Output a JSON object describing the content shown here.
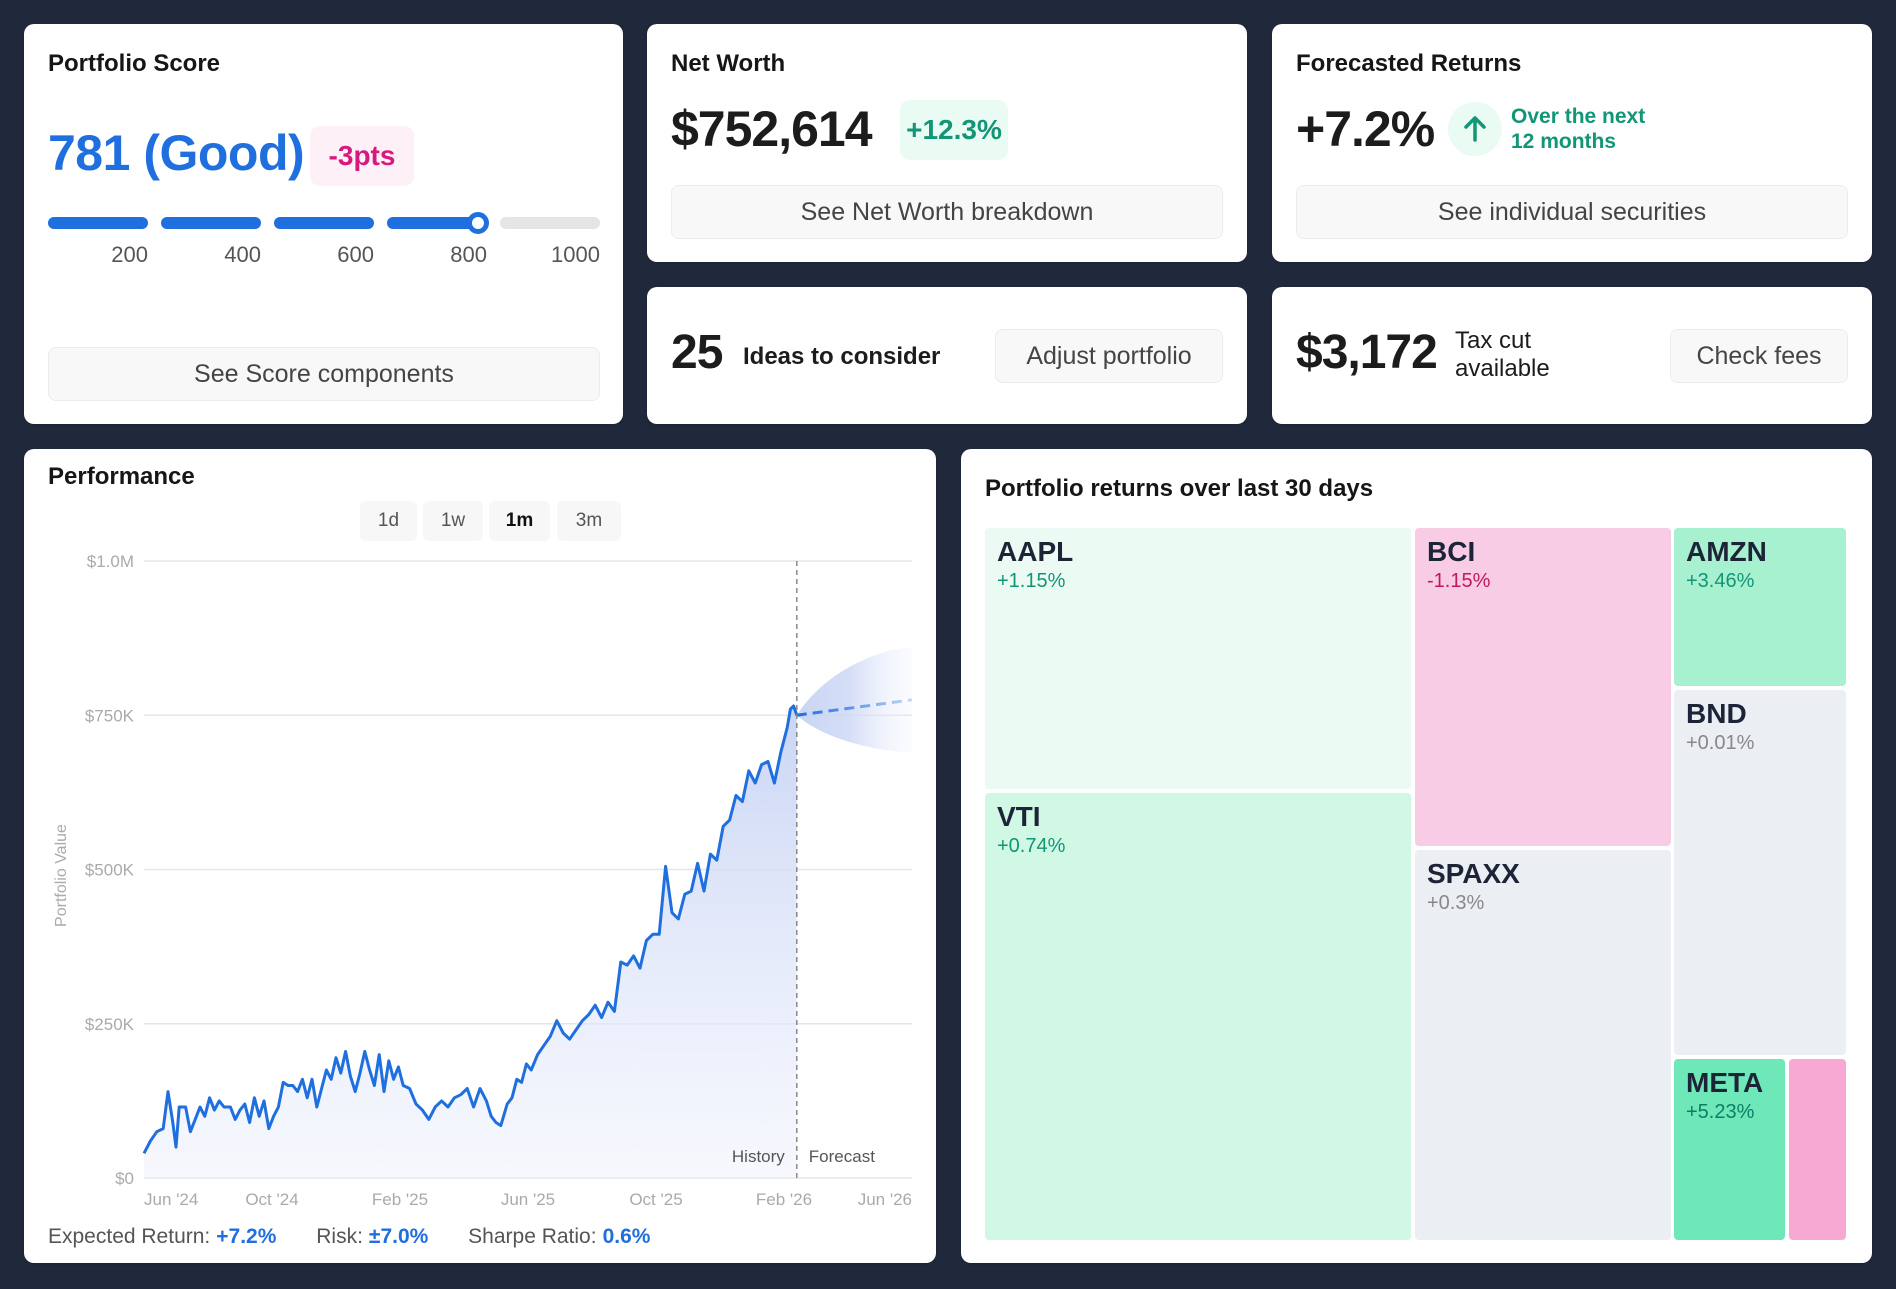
{
  "score": {
    "title": "Portfolio Score",
    "value": "781 (Good)",
    "score": 781,
    "score_max": 1000,
    "delta": "-3pts",
    "scale_labels": [
      "200",
      "400",
      "600",
      "800",
      "1000"
    ],
    "button": "See Score components"
  },
  "networth": {
    "title": "Net Worth",
    "value": "$752,614",
    "change": "+12.3%",
    "button": "See Net Worth breakdown"
  },
  "forecast": {
    "title": "Forecasted Returns",
    "value": "+7.2%",
    "icon": "arrow-up-icon",
    "note_line1": "Over the next",
    "note_line2": "12 months",
    "button": "See individual securities"
  },
  "ideas": {
    "count": "25",
    "label": "Ideas to consider",
    "button": "Adjust portfolio"
  },
  "taxcut": {
    "value": "$3,172",
    "label_line1": "Tax cut",
    "label_line2": "available",
    "button": "Check fees"
  },
  "performance": {
    "title": "Performance",
    "ranges": [
      {
        "label": "1d",
        "active": false
      },
      {
        "label": "1w",
        "active": false
      },
      {
        "label": "1m",
        "active": true
      },
      {
        "label": "3m",
        "active": false
      }
    ],
    "stats": {
      "expected_label": "Expected Return:",
      "expected_value": "+7.2%",
      "risk_label": "Risk:",
      "risk_value": "±7.0%",
      "sharpe_label": "Sharpe Ratio:",
      "sharpe_value": "0.6%"
    }
  },
  "chart_data": {
    "type": "line",
    "title": "Performance",
    "ylabel": "Portfolio Value",
    "xlabel": "",
    "ylim": [
      0,
      1000000
    ],
    "yticks": [
      0,
      250000,
      500000,
      750000,
      1000000
    ],
    "ytick_labels": [
      "$0",
      "$250K",
      "$500K",
      "$750K",
      "$1.0M"
    ],
    "xticks": [
      "Jun '24",
      "Oct '24",
      "Feb '25",
      "Jun '25",
      "Oct '25",
      "Feb '26",
      "Jun '26"
    ],
    "x_range_months": [
      0,
      24
    ],
    "grid": true,
    "divider_month": 20.4,
    "divider_labels": {
      "left": "History",
      "right": "Forecast"
    },
    "series": [
      {
        "name": "History",
        "style": "solid",
        "points_month_value": [
          [
            0.0,
            40000
          ],
          [
            0.2,
            60000
          ],
          [
            0.4,
            75000
          ],
          [
            0.6,
            80000
          ],
          [
            0.75,
            140000
          ],
          [
            0.9,
            90000
          ],
          [
            1.0,
            50000
          ],
          [
            1.1,
            115000
          ],
          [
            1.3,
            115000
          ],
          [
            1.45,
            75000
          ],
          [
            1.6,
            95000
          ],
          [
            1.75,
            115000
          ],
          [
            1.9,
            100000
          ],
          [
            2.05,
            130000
          ],
          [
            2.2,
            110000
          ],
          [
            2.35,
            125000
          ],
          [
            2.5,
            115000
          ],
          [
            2.7,
            115000
          ],
          [
            2.85,
            95000
          ],
          [
            3.0,
            110000
          ],
          [
            3.15,
            120000
          ],
          [
            3.3,
            90000
          ],
          [
            3.45,
            130000
          ],
          [
            3.6,
            100000
          ],
          [
            3.75,
            125000
          ],
          [
            3.9,
            80000
          ],
          [
            4.05,
            100000
          ],
          [
            4.2,
            115000
          ],
          [
            4.35,
            155000
          ],
          [
            4.5,
            150000
          ],
          [
            4.65,
            150000
          ],
          [
            4.8,
            140000
          ],
          [
            4.95,
            160000
          ],
          [
            5.1,
            130000
          ],
          [
            5.25,
            160000
          ],
          [
            5.4,
            115000
          ],
          [
            5.55,
            145000
          ],
          [
            5.7,
            175000
          ],
          [
            5.85,
            160000
          ],
          [
            6.0,
            195000
          ],
          [
            6.15,
            170000
          ],
          [
            6.3,
            205000
          ],
          [
            6.45,
            165000
          ],
          [
            6.6,
            140000
          ],
          [
            6.75,
            170000
          ],
          [
            6.9,
            205000
          ],
          [
            7.05,
            175000
          ],
          [
            7.2,
            150000
          ],
          [
            7.35,
            200000
          ],
          [
            7.5,
            140000
          ],
          [
            7.65,
            190000
          ],
          [
            7.8,
            160000
          ],
          [
            7.95,
            180000
          ],
          [
            8.1,
            150000
          ],
          [
            8.3,
            145000
          ],
          [
            8.5,
            120000
          ],
          [
            8.7,
            110000
          ],
          [
            8.9,
            95000
          ],
          [
            9.1,
            115000
          ],
          [
            9.3,
            125000
          ],
          [
            9.5,
            115000
          ],
          [
            9.7,
            130000
          ],
          [
            9.9,
            135000
          ],
          [
            10.1,
            145000
          ],
          [
            10.3,
            115000
          ],
          [
            10.5,
            145000
          ],
          [
            10.7,
            125000
          ],
          [
            10.85,
            100000
          ],
          [
            11.0,
            90000
          ],
          [
            11.15,
            85000
          ],
          [
            11.35,
            120000
          ],
          [
            11.5,
            130000
          ],
          [
            11.65,
            160000
          ],
          [
            11.8,
            155000
          ],
          [
            11.95,
            185000
          ],
          [
            12.1,
            175000
          ],
          [
            12.3,
            200000
          ],
          [
            12.5,
            215000
          ],
          [
            12.7,
            230000
          ],
          [
            12.9,
            255000
          ],
          [
            13.1,
            235000
          ],
          [
            13.3,
            225000
          ],
          [
            13.5,
            240000
          ],
          [
            13.7,
            255000
          ],
          [
            13.9,
            265000
          ],
          [
            14.1,
            280000
          ],
          [
            14.3,
            260000
          ],
          [
            14.5,
            285000
          ],
          [
            14.7,
            270000
          ],
          [
            14.9,
            350000
          ],
          [
            15.1,
            345000
          ],
          [
            15.3,
            360000
          ],
          [
            15.5,
            340000
          ],
          [
            15.7,
            385000
          ],
          [
            15.9,
            395000
          ],
          [
            16.1,
            395000
          ],
          [
            16.3,
            505000
          ],
          [
            16.5,
            430000
          ],
          [
            16.7,
            420000
          ],
          [
            16.9,
            460000
          ],
          [
            17.1,
            465000
          ],
          [
            17.3,
            510000
          ],
          [
            17.5,
            465000
          ],
          [
            17.7,
            525000
          ],
          [
            17.9,
            515000
          ],
          [
            18.1,
            570000
          ],
          [
            18.3,
            580000
          ],
          [
            18.5,
            620000
          ],
          [
            18.7,
            610000
          ],
          [
            18.9,
            660000
          ],
          [
            19.1,
            640000
          ],
          [
            19.3,
            670000
          ],
          [
            19.5,
            675000
          ],
          [
            19.7,
            640000
          ],
          [
            19.9,
            690000
          ],
          [
            20.1,
            730000
          ],
          [
            20.2,
            760000
          ],
          [
            20.3,
            765000
          ],
          [
            20.4,
            750000
          ]
        ]
      },
      {
        "name": "Forecast",
        "style": "dashed",
        "points_month_value": [
          [
            20.4,
            750000
          ],
          [
            24.0,
            775000
          ]
        ],
        "band_upper_end": 860000,
        "band_lower_end": 690000
      }
    ]
  },
  "treemap": {
    "title": "Portfolio returns over last 30 days",
    "tiles": [
      {
        "ticker": "AAPL",
        "change": "+1.15%",
        "tone": "pos-light"
      },
      {
        "ticker": "VTI",
        "change": "+0.74%",
        "tone": "pos-lighter"
      },
      {
        "ticker": "BCI",
        "change": "-1.15%",
        "tone": "neg"
      },
      {
        "ticker": "SPAXX",
        "change": "+0.3%",
        "tone": "neutral"
      },
      {
        "ticker": "AMZN",
        "change": "+3.46%",
        "tone": "pos-mid"
      },
      {
        "ticker": "BND",
        "change": "+0.01%",
        "tone": "neutral"
      },
      {
        "ticker": "META",
        "change": "+5.23%",
        "tone": "pos-strong"
      },
      {
        "ticker": "",
        "change": "",
        "tone": "neg-strong"
      }
    ]
  },
  "colors": {
    "accent_blue": "#1f6fde",
    "positive": "#139577",
    "negative": "#d6187f",
    "background": "#1f293b"
  }
}
